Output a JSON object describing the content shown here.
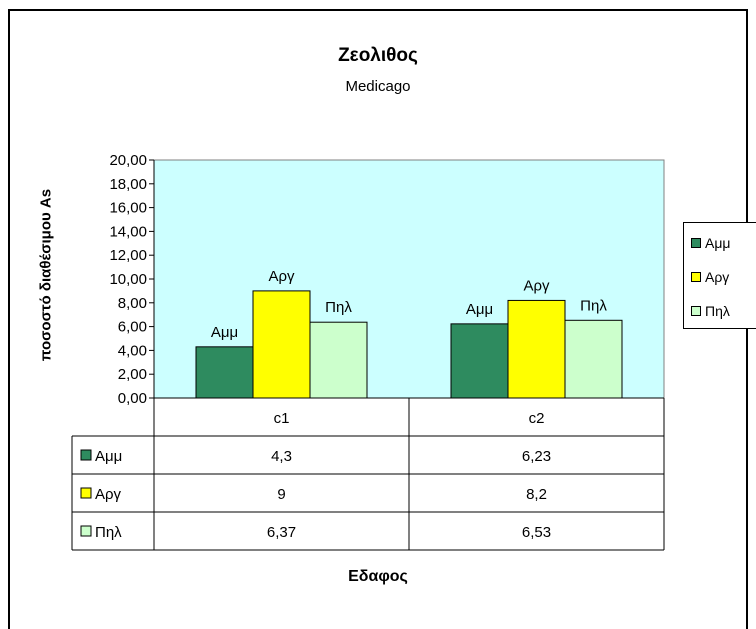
{
  "chart_data": {
    "type": "bar",
    "title": "Ζεολιθος",
    "subtitle": "Medicago",
    "xlabel": "Εδαφος",
    "ylabel": "ποσοστό διαθέσιμου As",
    "categories": [
      "c1",
      "c2"
    ],
    "series": [
      {
        "name": "Αμμ",
        "values": [
          4.3,
          6.23
        ],
        "color": "#2e8b5f",
        "table_values": [
          "4,3",
          "6,23"
        ]
      },
      {
        "name": "Αργ",
        "values": [
          9,
          8.2
        ],
        "color": "#ffff00",
        "table_values": [
          "9",
          "8,2"
        ]
      },
      {
        "name": "Πηλ",
        "values": [
          6.37,
          6.53
        ],
        "color": "#ccffcc",
        "table_values": [
          "6,37",
          "6,53"
        ]
      }
    ],
    "ylim": [
      0,
      20
    ],
    "yticks": [
      "0,00",
      "2,00",
      "4,00",
      "6,00",
      "8,00",
      "10,00",
      "12,00",
      "14,00",
      "16,00",
      "18,00",
      "20,00"
    ],
    "plot_background": "#ccffff",
    "legend_position": "right",
    "grid": false,
    "data_table": true
  }
}
